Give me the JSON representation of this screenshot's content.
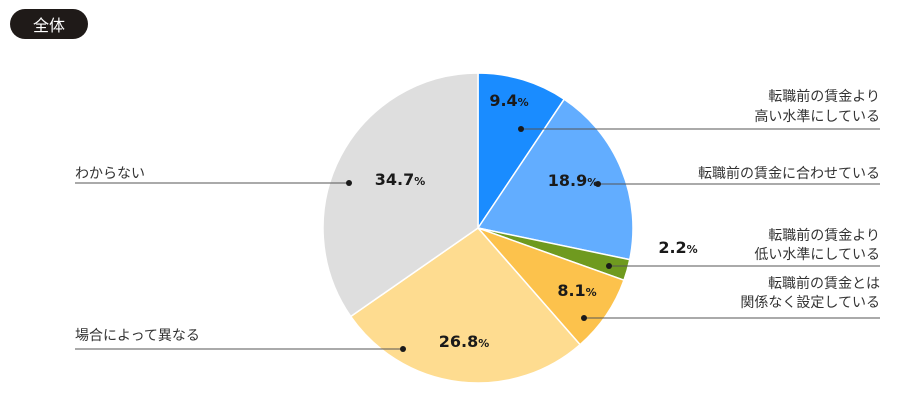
{
  "badge": {
    "label": "全体"
  },
  "chart_data": {
    "type": "pie",
    "categories": [
      [
        "転職前の賃金より",
        "高い水準にしている"
      ],
      [
        "転職前の賃金に合わせている"
      ],
      [
        "転職前の賃金より",
        "低い水準にしている"
      ],
      [
        "転職前の賃金とは",
        "関係なく設定している"
      ],
      [
        "場合によって異なる"
      ],
      [
        "わからない"
      ]
    ],
    "values": [
      9.4,
      18.9,
      2.2,
      8.1,
      26.8,
      34.7
    ],
    "value_labels": [
      "9.4",
      "18.9",
      "2.2",
      "8.1",
      "26.8",
      "34.7"
    ],
    "unit": "%",
    "colors": [
      "#1a8cff",
      "#62adff",
      "#6f9a1f",
      "#fcc24c",
      "#fedc90",
      "#dedede"
    ],
    "start": "12 o'clock",
    "direction": "clockwise"
  }
}
